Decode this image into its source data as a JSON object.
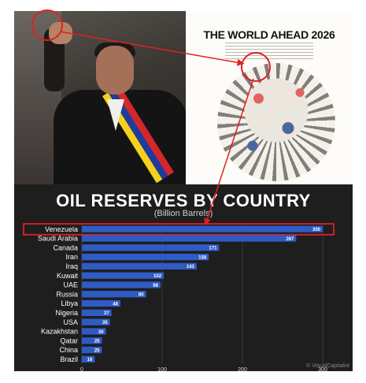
{
  "cover": {
    "title": "THE WORLD AHEAD 2026"
  },
  "chart_data": {
    "type": "bar",
    "orientation": "horizontal",
    "title": "OIL RESERVES BY COUNTRY",
    "subtitle": "(Billion Barrels)",
    "categories": [
      "Venezuela",
      "Saudi Arabia",
      "Canada",
      "Iran",
      "Iraq",
      "Kuwait",
      "UAE",
      "Russia",
      "Libya",
      "Nigeria",
      "USA",
      "Kazakhstan",
      "Qatar",
      "China",
      "Brazil"
    ],
    "values": [
      300,
      267,
      171,
      158,
      143,
      102,
      98,
      80,
      48,
      37,
      35,
      30,
      25,
      25,
      16
    ],
    "x_ticks": [
      0,
      100,
      200,
      300
    ],
    "xlim": [
      0,
      300
    ],
    "highlighted_category": "Venezuela",
    "grid": true,
    "colors": {
      "bar": "#2f5bc4",
      "highlight": "#e02020",
      "background": "#1e1e1f",
      "text": "#ffffff"
    }
  },
  "watermark": "© VisualCapitalist"
}
